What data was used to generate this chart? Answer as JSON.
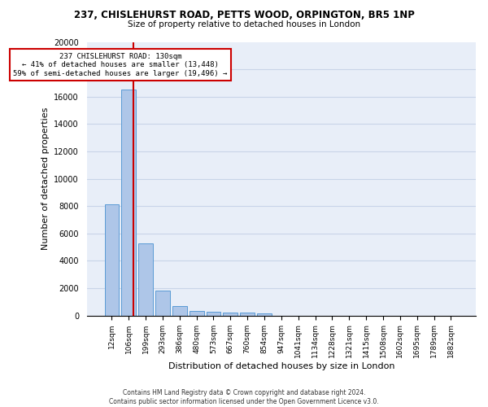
{
  "title_line1": "237, CHISLEHURST ROAD, PETTS WOOD, ORPINGTON, BR5 1NP",
  "title_line2": "Size of property relative to detached houses in London",
  "xlabel": "Distribution of detached houses by size in London",
  "ylabel": "Number of detached properties",
  "categories": [
    "12sqm",
    "106sqm",
    "199sqm",
    "293sqm",
    "386sqm",
    "480sqm",
    "573sqm",
    "667sqm",
    "760sqm",
    "854sqm",
    "947sqm",
    "1041sqm",
    "1134sqm",
    "1228sqm",
    "1321sqm",
    "1415sqm",
    "1508sqm",
    "1602sqm",
    "1695sqm",
    "1789sqm",
    "1882sqm"
  ],
  "values": [
    8100,
    16500,
    5300,
    1850,
    700,
    350,
    270,
    200,
    190,
    170,
    0,
    0,
    0,
    0,
    0,
    0,
    0,
    0,
    0,
    0,
    0
  ],
  "bar_color": "#aec6e8",
  "bar_edge_color": "#5a9bd5",
  "subject_vline_x": 1.26,
  "subject_label": "237 CHISLEHURST ROAD: 130sqm",
  "annotation_line2": "← 41% of detached houses are smaller (13,448)",
  "annotation_line3": "59% of semi-detached houses are larger (19,496) →",
  "annotation_box_color": "#ffffff",
  "annotation_box_edge_color": "#cc0000",
  "subject_vline_color": "#cc0000",
  "grid_color": "#c8d4e8",
  "background_color": "#e8eef8",
  "ylim": [
    0,
    20000
  ],
  "yticks": [
    0,
    2000,
    4000,
    6000,
    8000,
    10000,
    12000,
    14000,
    16000,
    18000,
    20000
  ],
  "footer_line1": "Contains HM Land Registry data © Crown copyright and database right 2024.",
  "footer_line2": "Contains public sector information licensed under the Open Government Licence v3.0."
}
